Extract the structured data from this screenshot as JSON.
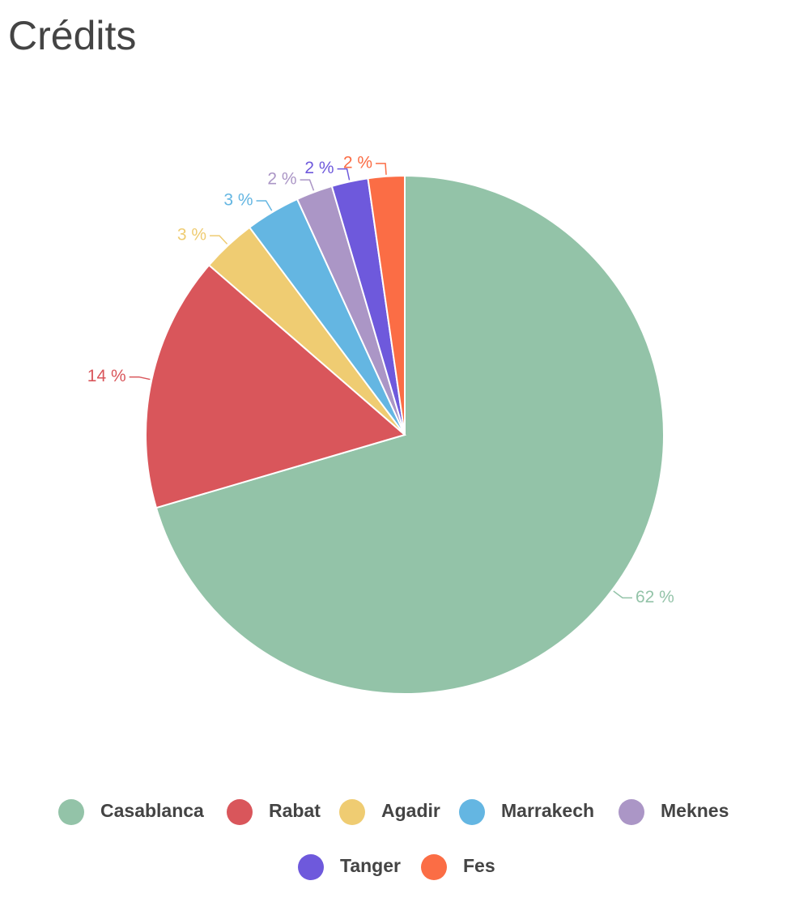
{
  "chart_data": {
    "type": "pie",
    "title": "Crédits",
    "categories": [
      "Casablanca",
      "Rabat",
      "Agadir",
      "Marrakech",
      "Meknes",
      "Tanger",
      "Fes"
    ],
    "values": [
      62,
      14,
      3,
      3,
      2,
      2,
      2
    ],
    "value_labels": [
      "62 %",
      "14 %",
      "3 %",
      "3 %",
      "2 %",
      "2 %",
      "2 %"
    ],
    "colors": [
      "#93c3a8",
      "#d9565b",
      "#efcc72",
      "#64b6e2",
      "#ab96c6",
      "#6e59dc",
      "#fb6d45"
    ],
    "legend": "bottom"
  }
}
